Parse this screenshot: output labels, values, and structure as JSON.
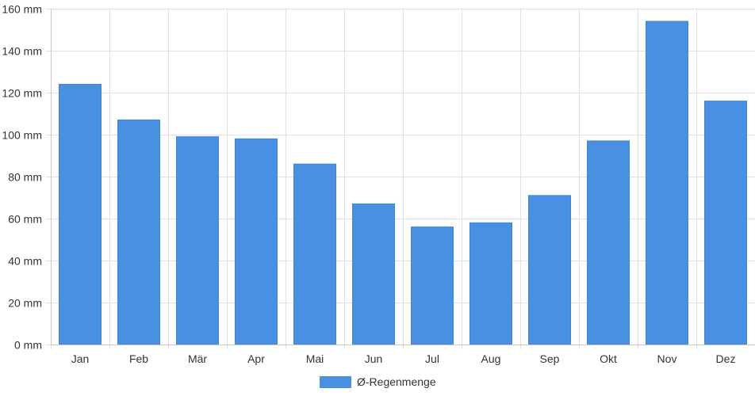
{
  "chart_data": {
    "type": "bar",
    "categories": [
      "Jan",
      "Feb",
      "Mär",
      "Apr",
      "Mai",
      "Jun",
      "Jul",
      "Aug",
      "Sep",
      "Okt",
      "Nov",
      "Dez"
    ],
    "series": [
      {
        "name": "Ø-Regenmenge",
        "values": [
          124,
          107,
          99,
          98,
          86,
          67,
          56,
          58,
          71,
          97,
          154,
          116
        ],
        "color": "#4a90e2"
      }
    ],
    "ylim": [
      0,
      160
    ],
    "yticks": [
      "0 mm",
      "20 mm",
      "40 mm",
      "60 mm",
      "80 mm",
      "100 mm",
      "120 mm",
      "140 mm",
      "160 mm"
    ],
    "y_unit": "mm",
    "grid": true,
    "legend_position": "bottom-center"
  }
}
